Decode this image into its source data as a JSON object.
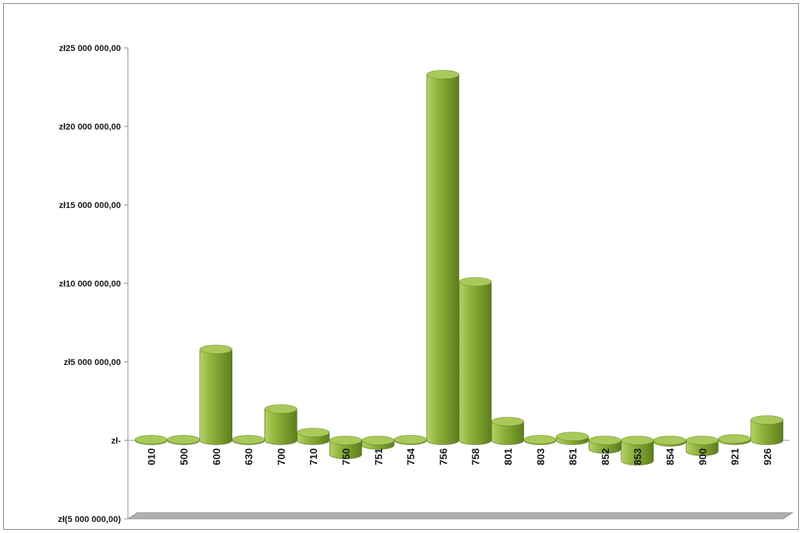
{
  "chart_data": {
    "type": "bar",
    "title": "",
    "xlabel": "",
    "ylabel": "",
    "categories": [
      "010",
      "500",
      "600",
      "630",
      "700",
      "710",
      "750",
      "751",
      "754",
      "756",
      "758",
      "801",
      "803",
      "851",
      "852",
      "853",
      "854",
      "900",
      "921",
      "926"
    ],
    "values": [
      50000,
      50000,
      5800000,
      50000,
      2000000,
      500000,
      -900000,
      -300000,
      50000,
      23300000,
      10100000,
      1200000,
      50000,
      250000,
      -550000,
      -1300000,
      -100000,
      -700000,
      100000,
      1300000
    ],
    "ylim": [
      -5000000,
      25000000
    ],
    "ytick_values": [
      25000000,
      20000000,
      15000000,
      10000000,
      5000000,
      0,
      -5000000
    ],
    "ytick_labels": [
      "zł25 000 000,00",
      "zł20 000 000,00",
      "zł15 000 000,00",
      "zł10 000 000,00",
      "zł5 000 000,00",
      "zł-",
      "zł(5 000 000,00)"
    ],
    "grid": false,
    "legend": "none",
    "bar_style": "3d-cylinder",
    "colors": {
      "bar_light": "#b4d169",
      "bar_mid": "#8db33a",
      "bar_dark": "#5e7d1e",
      "bar_top": "#a9c95a",
      "floor": "#b0b0b0"
    }
  }
}
